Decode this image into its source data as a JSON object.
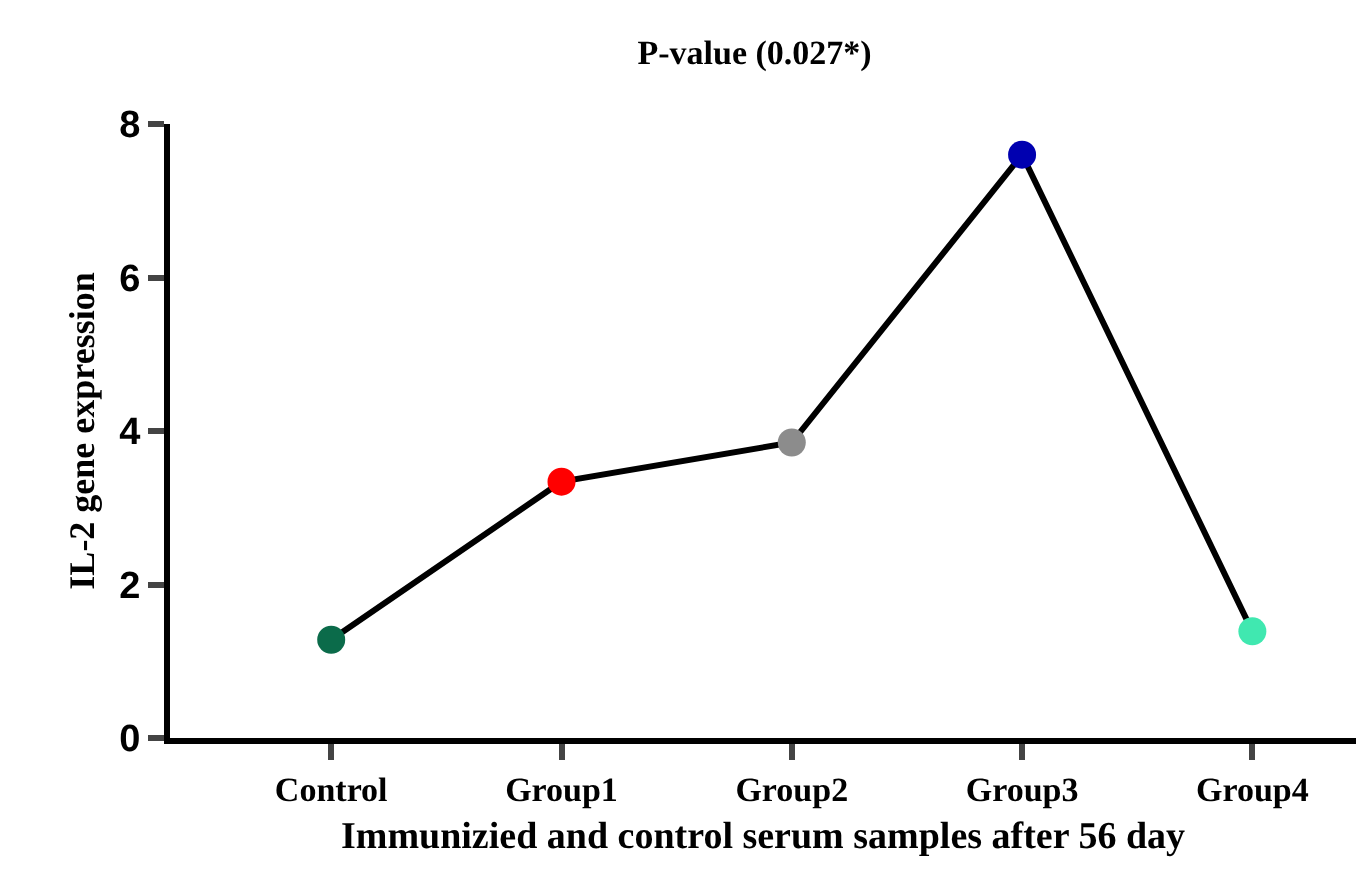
{
  "chart_data": {
    "type": "line",
    "title": "P-value (0.027*)",
    "xlabel": "Immunizied and control serum samples after 56 day",
    "ylabel": "IL-2 gene expression",
    "categories": [
      "Control",
      "Group1",
      "Group2",
      "Group3",
      "Group4"
    ],
    "series": [
      {
        "color": "#000000",
        "colors": [
          "#0b6b4a",
          "#ff0000",
          "#8c8c8c",
          "#0000b0",
          "#40e8b0"
        ],
        "values": [
          1.28,
          3.34,
          3.85,
          7.6,
          1.39
        ]
      }
    ],
    "ylim": [
      0,
      8
    ],
    "yticks": [
      0,
      2,
      4,
      6,
      8
    ],
    "marker": "circle",
    "line_style": "solid"
  }
}
